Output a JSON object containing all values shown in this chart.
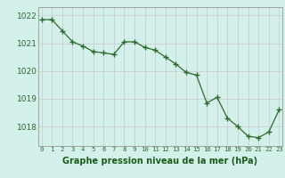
{
  "x": [
    0,
    1,
    2,
    3,
    4,
    5,
    6,
    7,
    8,
    9,
    10,
    11,
    12,
    13,
    14,
    15,
    16,
    17,
    18,
    19,
    20,
    21,
    22,
    23
  ],
  "y": [
    1021.85,
    1021.85,
    1021.45,
    1021.05,
    1020.9,
    1020.7,
    1020.65,
    1020.6,
    1021.05,
    1021.05,
    1020.85,
    1020.75,
    1020.5,
    1020.25,
    1019.95,
    1019.85,
    1018.85,
    1019.05,
    1018.3,
    1018.0,
    1017.65,
    1017.6,
    1017.8,
    1018.6
  ],
  "line_color": "#2d6a2d",
  "marker": "+",
  "marker_size": 4,
  "background_color": "#d4f0eb",
  "grid_color": "#c8c8c8",
  "xlabel": "Graphe pression niveau de la mer (hPa)",
  "xlabel_color": "#1a5c1a",
  "tick_color": "#2d6a2d",
  "axis_color": "#888888",
  "ylim": [
    1017.3,
    1022.3
  ],
  "yticks": [
    1018,
    1019,
    1020,
    1021,
    1022
  ],
  "xtick_labels": [
    "0",
    "1",
    "2",
    "3",
    "4",
    "5",
    "6",
    "7",
    "8",
    "9",
    "10",
    "11",
    "12",
    "13",
    "14",
    "15",
    "16",
    "17",
    "18",
    "19",
    "20",
    "21",
    "22",
    "23"
  ],
  "figwidth": 3.2,
  "figheight": 2.0,
  "dpi": 100
}
